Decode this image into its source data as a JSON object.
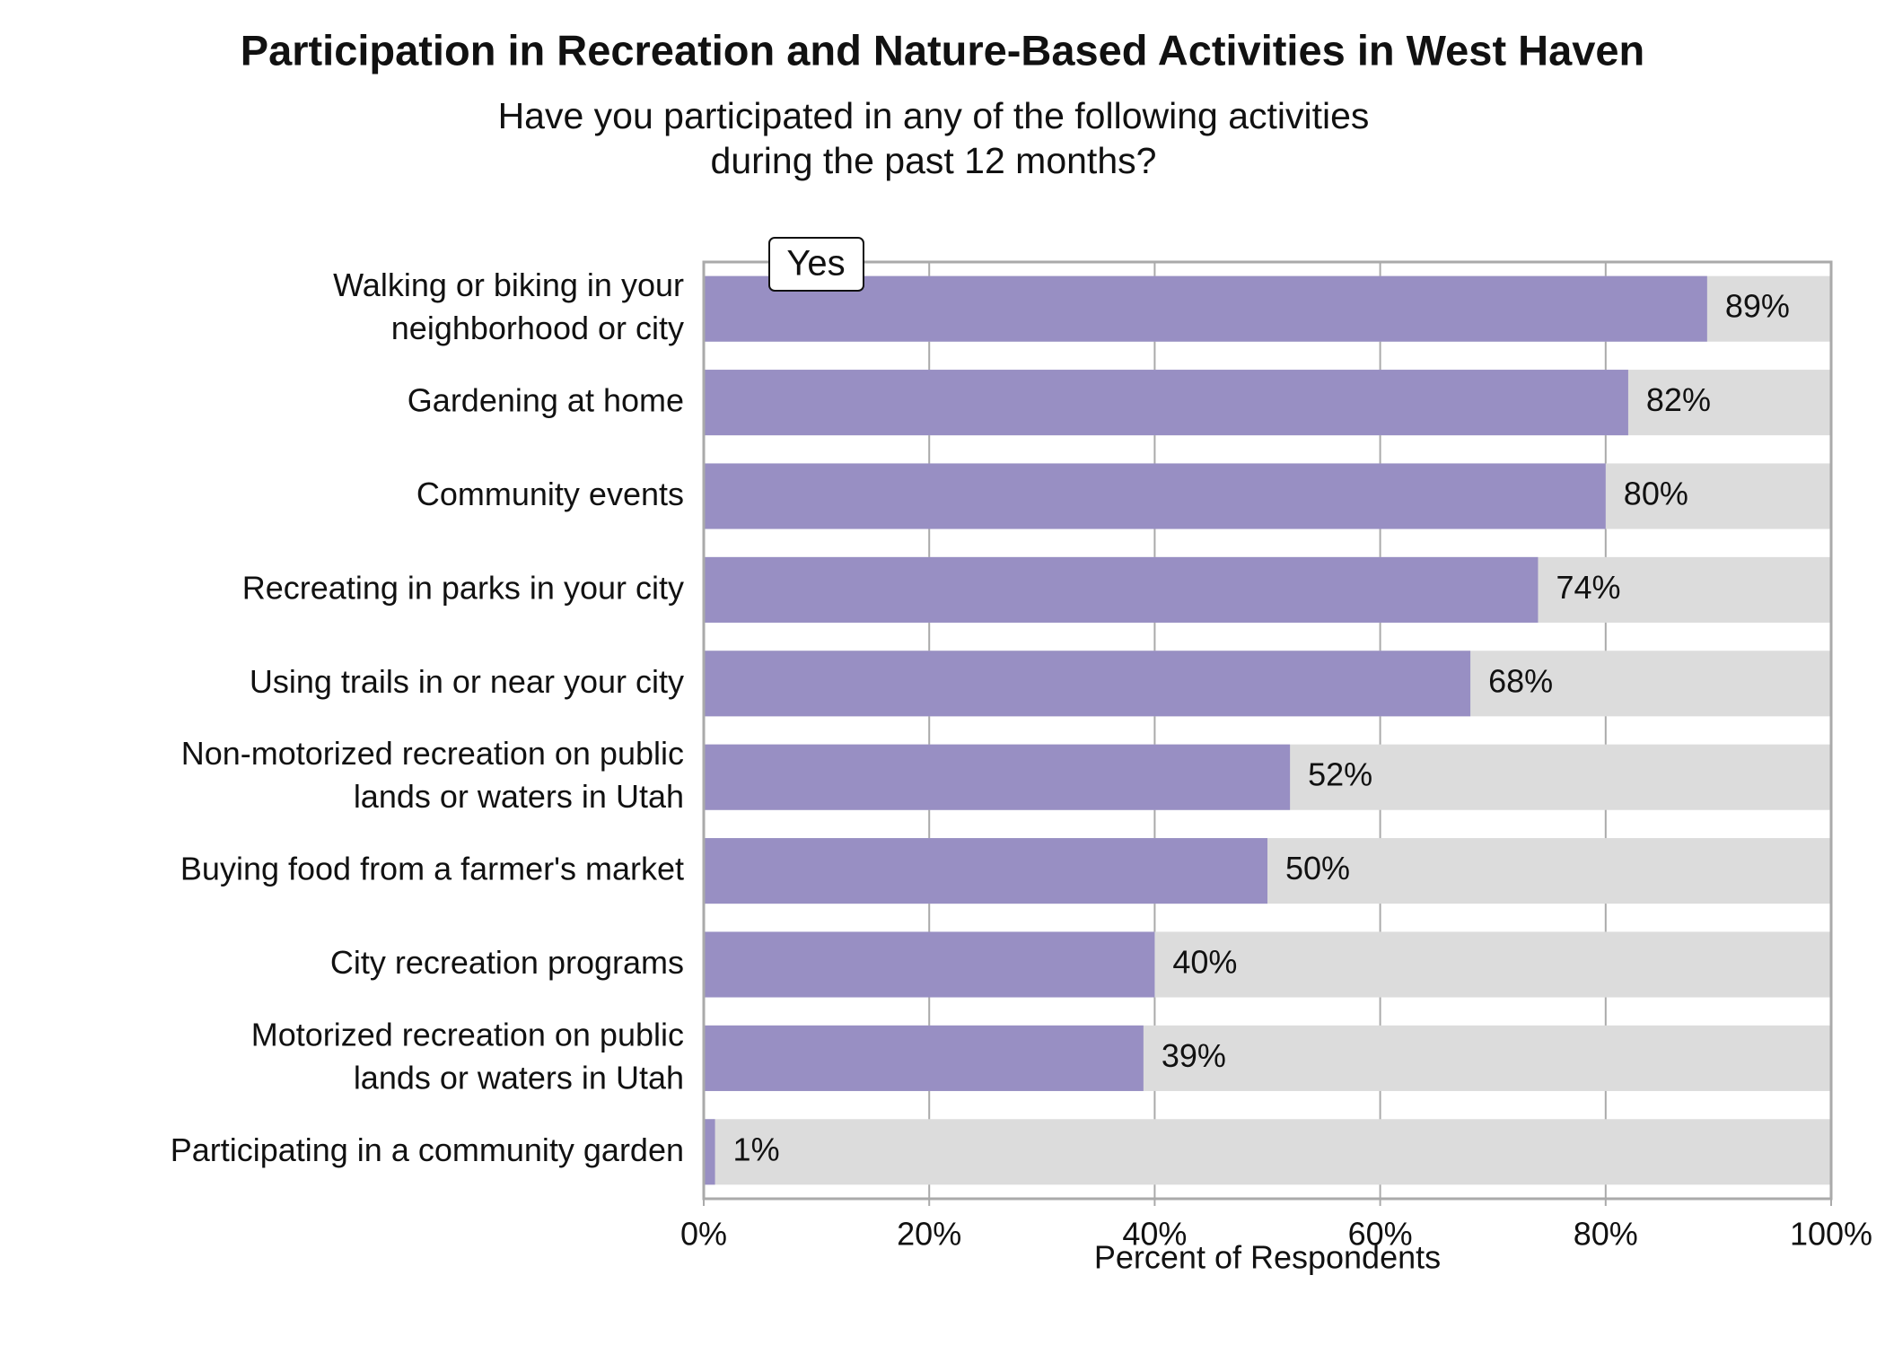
{
  "chart_data": {
    "type": "bar",
    "orientation": "horizontal",
    "title": "Participation in Recreation and Nature-Based Activities in West Haven",
    "subtitle": "Have you participated in any of the following activities during the past 12 months?",
    "categories": [
      "Walking or biking in your neighborhood or city",
      "Gardening at home",
      "Community events",
      "Recreating in parks in your city",
      "Using trails in or near your city",
      "Non-motorized recreation on public lands or waters in Utah",
      "Buying food from a farmer's market",
      "City recreation programs",
      "Motorized recreation on public lands or waters in Utah",
      "Participating in a community garden"
    ],
    "series": [
      {
        "name": "Yes",
        "color": "#988fc3",
        "values": [
          89,
          82,
          80,
          74,
          68,
          52,
          50,
          40,
          39,
          1
        ],
        "value_labels": [
          "89%",
          "82%",
          "80%",
          "74%",
          "68%",
          "52%",
          "50%",
          "40%",
          "39%",
          "1%"
        ]
      }
    ],
    "background_color": "#dcdcdc",
    "xlabel": "Percent of Respondents",
    "xlim": [
      0,
      100
    ],
    "xticks": [
      {
        "value": 0,
        "label": "0%"
      },
      {
        "value": 20,
        "label": "20%"
      },
      {
        "value": 40,
        "label": "40%"
      },
      {
        "value": 60,
        "label": "60%"
      },
      {
        "value": 80,
        "label": "80%"
      },
      {
        "value": 100,
        "label": "100%"
      }
    ],
    "grid": true,
    "legend": "top-left"
  }
}
